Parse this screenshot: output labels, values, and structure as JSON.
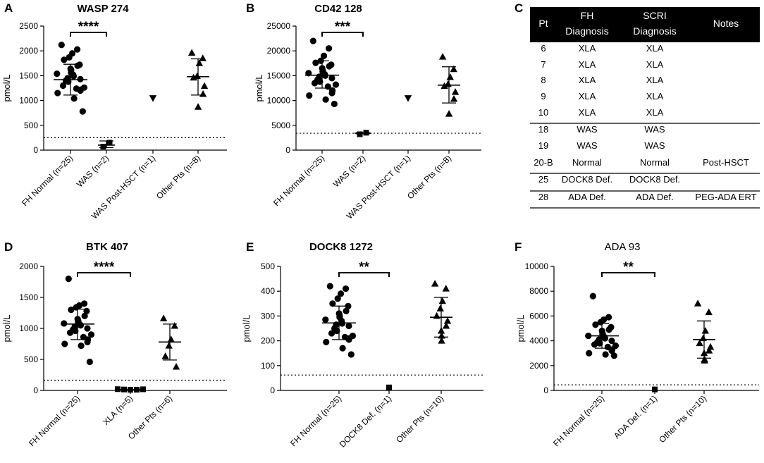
{
  "chart_data": [
    {
      "letter": "A",
      "type": "scatter",
      "title": "WASP 274",
      "title_bold": true,
      "ylabel": "pmol/L",
      "ylim": [
        0,
        2500
      ],
      "yticks": [
        "0",
        "500",
        "1000",
        "1500",
        "2000",
        "2500"
      ],
      "ytick_values": [
        0,
        500,
        1000,
        1500,
        2000,
        2500
      ],
      "threshold": 250,
      "categories": [
        "FH Normal (n=25)",
        "WAS (n=2)",
        "WAS Post-HSCT (n=1)",
        "Other Pts (n=8)"
      ],
      "groups": [
        {
          "label": "FH Normal (n=25)",
          "marker": "circle",
          "mean": 1420,
          "sd_low": 1110,
          "sd_high": 1730,
          "points": [
            2120,
            2030,
            1950,
            1870,
            1820,
            1720,
            1700,
            1640,
            1620,
            1560,
            1540,
            1520,
            1490,
            1450,
            1430,
            1400,
            1380,
            1300,
            1260,
            1240,
            1220,
            1200,
            1150,
            1040,
            780
          ]
        },
        {
          "label": "WAS (n=2)",
          "marker": "square",
          "mean": 100,
          "sd_low": 50,
          "sd_high": 185,
          "points": [
            70,
            150
          ]
        },
        {
          "label": "WAS Post-HSCT (n=1)",
          "marker": "triangle-down",
          "points": [
            1050
          ]
        },
        {
          "label": "Other Pts (n=8)",
          "marker": "triangle",
          "mean": 1480,
          "sd_low": 1110,
          "sd_high": 1840,
          "points": [
            1960,
            1850,
            1750,
            1490,
            1460,
            1290,
            1130,
            870
          ]
        }
      ],
      "significance": {
        "from": 0,
        "to": 1,
        "label": "****"
      }
    },
    {
      "letter": "B",
      "type": "scatter",
      "title": "CD42 128",
      "title_bold": true,
      "ylabel": "pmol/L",
      "ylim": [
        0,
        25000
      ],
      "yticks": [
        "0",
        "5000",
        "10000",
        "15000",
        "20000",
        "25000"
      ],
      "ytick_values": [
        0,
        5000,
        10000,
        15000,
        20000,
        25000
      ],
      "threshold": 3400,
      "categories": [
        "FH Normal (n=25)",
        "WAS (n=2)",
        "WAS Post-HSCT (n=1)",
        "Other Pts (n=8)"
      ],
      "groups": [
        {
          "label": "FH Normal (n=25)",
          "marker": "circle",
          "mean": 15100,
          "sd_low": 12500,
          "sd_high": 18000,
          "points": [
            22000,
            20500,
            19000,
            18000,
            17600,
            17200,
            16900,
            16500,
            16000,
            15800,
            15500,
            15300,
            15000,
            14800,
            14500,
            14200,
            13800,
            13500,
            13200,
            12800,
            12000,
            11500,
            11000,
            10200,
            9300
          ]
        },
        {
          "label": "WAS (n=2)",
          "marker": "square",
          "mean": 3400,
          "sd_low": 3300,
          "sd_high": 3500,
          "points": [
            3200,
            3500
          ]
        },
        {
          "label": "WAS Post-HSCT (n=1)",
          "marker": "triangle-down",
          "points": [
            10500
          ]
        },
        {
          "label": "Other Pts (n=8)",
          "marker": "triangle",
          "mean": 13100,
          "sd_low": 9500,
          "sd_high": 16800,
          "points": [
            18800,
            16300,
            14700,
            13300,
            12900,
            11700,
            10300,
            7300
          ]
        }
      ],
      "significance": {
        "from": 0,
        "to": 1,
        "label": "***"
      }
    },
    {
      "letter": "D",
      "type": "scatter",
      "title": "BTK 407",
      "title_bold": true,
      "ylabel": "pmol/L",
      "ylim": [
        0,
        2000
      ],
      "yticks": [
        "0",
        "500",
        "1000",
        "1500",
        "2000"
      ],
      "ytick_values": [
        0,
        500,
        1000,
        1500,
        2000
      ],
      "threshold": 165,
      "categories": [
        "FH Normal (n=25)",
        "XLA (n=5)",
        "Other Pts (n=6)"
      ],
      "groups": [
        {
          "label": "FH Normal (n=25)",
          "marker": "circle",
          "mean": 1070,
          "sd_low": 820,
          "sd_high": 1310,
          "points": [
            1800,
            1400,
            1370,
            1340,
            1300,
            1280,
            1200,
            1150,
            1120,
            1100,
            1080,
            1060,
            1050,
            1030,
            1000,
            980,
            960,
            930,
            900,
            860,
            820,
            780,
            750,
            720,
            460
          ]
        },
        {
          "label": "XLA (n=5)",
          "marker": "square",
          "mean": 15,
          "points": [
            20,
            15,
            10,
            12,
            18
          ]
        },
        {
          "label": "Other Pts (n=6)",
          "marker": "triangle",
          "mean": 780,
          "sd_low": 490,
          "sd_high": 1070,
          "points": [
            1160,
            1040,
            820,
            720,
            550,
            380
          ]
        }
      ],
      "significance": {
        "from": 0,
        "to": 1,
        "label": "****"
      }
    },
    {
      "letter": "E",
      "type": "scatter",
      "title": "DOCK8 1272",
      "title_bold": true,
      "ylabel": "pmol/L",
      "ylim": [
        0,
        500
      ],
      "yticks": [
        "0",
        "100",
        "200",
        "300",
        "400",
        "500"
      ],
      "ytick_values": [
        0,
        100,
        200,
        300,
        400,
        500
      ],
      "threshold": 62,
      "categories": [
        "FH Normal (n=25)",
        "DOCK8 Def. (n=1)",
        "Other Pts (n=10)"
      ],
      "groups": [
        {
          "label": "FH Normal (n=25)",
          "marker": "circle",
          "mean": 272,
          "sd_low": 205,
          "sd_high": 340,
          "points": [
            420,
            410,
            390,
            370,
            350,
            340,
            320,
            310,
            300,
            295,
            285,
            280,
            270,
            265,
            260,
            250,
            240,
            230,
            220,
            215,
            210,
            205,
            195,
            170,
            145
          ]
        },
        {
          "label": "DOCK8 Def. (n=1)",
          "marker": "square",
          "points": [
            12
          ]
        },
        {
          "label": "Other Pts (n=10)",
          "marker": "triangle",
          "mean": 295,
          "sd_low": 215,
          "sd_high": 375,
          "points": [
            430,
            410,
            360,
            330,
            300,
            280,
            260,
            240,
            220,
            200
          ]
        }
      ],
      "significance": {
        "from": 0,
        "to": 1,
        "label": "**"
      }
    },
    {
      "letter": "F",
      "type": "scatter",
      "title": "ADA 93",
      "title_bold": false,
      "ylabel": "pmol/L",
      "ylim": [
        0,
        10000
      ],
      "yticks": [
        "0",
        "2000",
        "4000",
        "6000",
        "8000",
        "10000"
      ],
      "ytick_values": [
        0,
        2000,
        4000,
        6000,
        8000,
        10000
      ],
      "threshold": 450,
      "categories": [
        "FH Normal (n=25)",
        "ADA Def. (n=1)",
        "Other Pts (n=10)"
      ],
      "groups": [
        {
          "label": "FH Normal (n=25)",
          "marker": "circle",
          "mean": 4400,
          "sd_low": 3400,
          "sd_high": 5400,
          "points": [
            7600,
            5900,
            5700,
            5500,
            5300,
            5100,
            4900,
            4800,
            4600,
            4500,
            4400,
            4300,
            4200,
            4100,
            4000,
            3900,
            3800,
            3700,
            3600,
            3500,
            3300,
            3200,
            3000,
            2900,
            2800
          ]
        },
        {
          "label": "ADA Def. (n=1)",
          "marker": "square",
          "points": [
            80
          ]
        },
        {
          "label": "Other Pts (n=10)",
          "marker": "triangle",
          "mean": 4100,
          "sd_low": 2600,
          "sd_high": 5600,
          "points": [
            7000,
            6300,
            4800,
            4200,
            3800,
            3500,
            3200,
            3000,
            2500,
            2400
          ]
        }
      ],
      "significance": {
        "from": 0,
        "to": 1,
        "label": "**"
      }
    }
  ],
  "table": {
    "letter": "C",
    "headers": [
      [
        "Pt"
      ],
      [
        "FH",
        "Diagnosis"
      ],
      [
        "SCRI",
        "Diagnosis"
      ],
      [
        "Notes"
      ]
    ],
    "rows": [
      [
        "6",
        "XLA",
        "XLA",
        ""
      ],
      [
        "7",
        "XLA",
        "XLA",
        ""
      ],
      [
        "8",
        "XLA",
        "XLA",
        ""
      ],
      [
        "9",
        "XLA",
        "XLA",
        ""
      ],
      [
        "10",
        "XLA",
        "XLA",
        ""
      ],
      [
        "18",
        "WAS",
        "WAS",
        ""
      ],
      [
        "19",
        "WAS",
        "WAS",
        ""
      ],
      [
        "20-B",
        "Normal",
        "Normal",
        "Post-HSCT"
      ],
      [
        "25",
        "DOCK8 Def.",
        "DOCK8 Def.",
        ""
      ],
      [
        "28",
        "ADA Def.",
        "ADA Def.",
        "PEG-ADA ERT"
      ]
    ]
  },
  "colors": {
    "ink": "#000000",
    "table_header_bg": "#000000",
    "table_header_text": "#ffffff",
    "background": "#ffffff"
  }
}
